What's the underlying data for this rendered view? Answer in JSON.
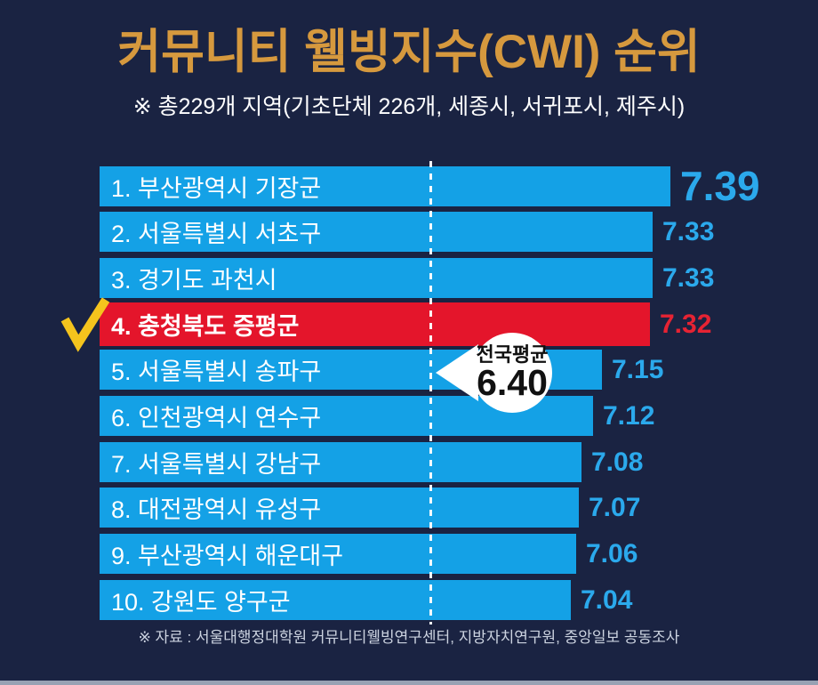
{
  "page": {
    "title": "커뮤니티 웰빙지수(CWI) 순위",
    "subtitle": "※ 총229개 지역(기초단체 226개, 세종시, 서귀포시, 제주시)",
    "footer": "※ 자료 : 서울대행정대학원 커뮤니티웰빙연구센터, 지방자치연구원, 중앙일보 공동조사"
  },
  "colors": {
    "background": "#1A2342",
    "title_gold": "#D6993E",
    "bar_blue": "#14A1E6",
    "highlight_red": "#E4152B",
    "value_blue": "#2BA9EC",
    "value_red": "#E62333",
    "checkmark_yellow": "#F5C41D",
    "dashed_line": "#FFFFFF",
    "bubble_bg": "#FFFFFF",
    "bubble_text": "#111111",
    "footer_text": "#CCD3E0",
    "bottom_strip": "#98A1B3"
  },
  "chart_data": {
    "type": "bar",
    "orientation": "horizontal",
    "title": "커뮤니티 웰빙지수(CWI) 순위",
    "subtitle": "※ 총229개 지역(기초단체 226개, 세종시, 서귀포시, 제주시)",
    "source_note": "※ 자료 : 서울대행정대학원 커뮤니티웰빙연구센터, 지방자치연구원, 중앙일보 공동조사",
    "categories": [
      "1. 부산광역시 기장군",
      "2. 서울특별시 서초구",
      "3. 경기도 과천시",
      "4. 충청북도 증평군",
      "5. 서울특별시 송파구",
      "6. 인천광역시 연수구",
      "7. 서울특별시 강남구",
      "8. 대전광역시 유성구",
      "9. 부산광역시 해운대구",
      "10. 강원도 양구군"
    ],
    "values": [
      7.39,
      7.33,
      7.33,
      7.32,
      7.15,
      7.12,
      7.08,
      7.07,
      7.06,
      7.04
    ],
    "value_labels": [
      "7.39",
      "7.33",
      "7.33",
      "7.32",
      "7.15",
      "7.12",
      "7.08",
      "7.07",
      "7.06",
      "7.04"
    ],
    "highlight": {
      "index": 3,
      "checkmark": true
    },
    "average_marker": {
      "label": "전국평균",
      "value": 6.4,
      "value_text": "6.40",
      "style": "dashed-vertical-line-with-bubble"
    },
    "axis_visible": false,
    "grid": false,
    "legend": "none",
    "xlim_implied": [
      5.39,
      7.5
    ]
  }
}
